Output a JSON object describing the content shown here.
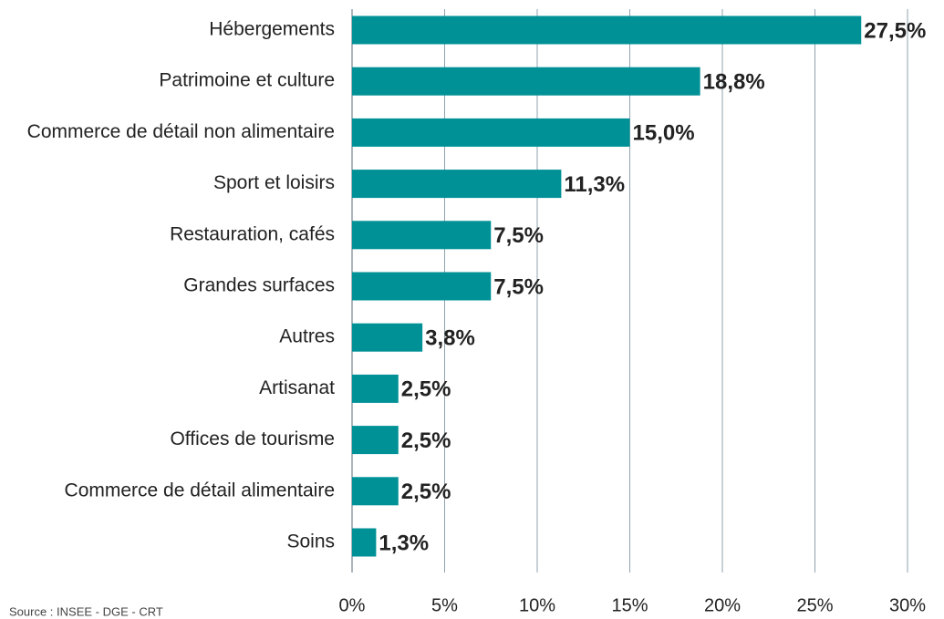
{
  "chart_data": {
    "type": "bar",
    "orientation": "horizontal",
    "categories": [
      "Hébergements",
      "Patrimoine et culture",
      "Commerce de détail non alimentaire",
      "Sport et loisirs",
      "Restauration, cafés",
      "Grandes surfaces",
      "Autres",
      "Artisanat",
      "Offices de tourisme",
      "Commerce de détail alimentaire",
      "Soins"
    ],
    "values": [
      27.5,
      18.8,
      15.0,
      11.3,
      7.5,
      7.5,
      3.8,
      2.5,
      2.5,
      2.5,
      1.3
    ],
    "value_labels": [
      "27,5%",
      "18,8%",
      "15,0%",
      "11,3%",
      "7,5%",
      "7,5%",
      "3,8%",
      "2,5%",
      "2,5%",
      "2,5%",
      "1,3%"
    ],
    "color": "#009196",
    "xlim": [
      0,
      30
    ],
    "xticks": [
      {
        "value": 0,
        "label": "0%"
      },
      {
        "value": 5,
        "label": "5%"
      },
      {
        "value": 10,
        "label": "10%"
      },
      {
        "value": 15,
        "label": "15%"
      },
      {
        "value": 20,
        "label": "20%"
      },
      {
        "value": 25,
        "label": "25%"
      },
      {
        "value": 30,
        "label": "30%"
      }
    ],
    "grid": true,
    "source": "Source : INSEE - DGE - CRT"
  }
}
